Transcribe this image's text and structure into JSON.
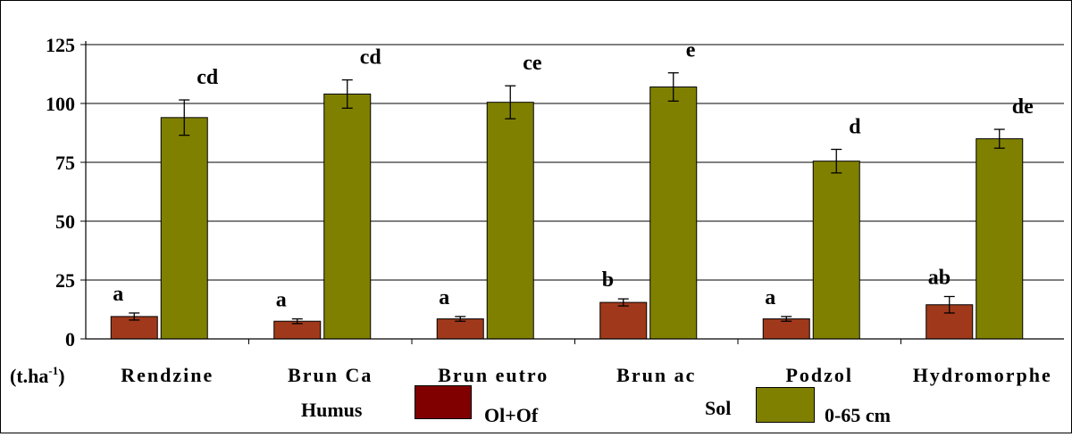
{
  "chart_data": {
    "type": "bar",
    "ylabel": "(t.ha",
    "ylabel_sup": "-1",
    "ylabel_close": ")",
    "ylim": [
      0,
      125
    ],
    "yticks": [
      "0",
      "25",
      "50",
      "75",
      "100",
      "125"
    ],
    "ytick_values": [
      0,
      25,
      50,
      75,
      100,
      125
    ],
    "grid": true,
    "categories": [
      "Rendzine",
      "Brun Ca",
      "Brun eutro",
      "Brun ac",
      "Podzol",
      "Hydromorphe"
    ],
    "series": [
      {
        "name": "Ol+Of",
        "group_label": "Humus",
        "color": "#a0391b",
        "values": [
          9.5,
          7.5,
          8.5,
          15.5,
          8.5,
          14.5
        ],
        "errors": [
          1.5,
          1.0,
          1.0,
          1.5,
          1.0,
          3.5
        ],
        "letters": [
          "a",
          "a",
          "a",
          "b",
          "a",
          "ab"
        ]
      },
      {
        "name": "0-65 cm",
        "group_label": "Sol",
        "color": "#808000",
        "values": [
          94,
          104,
          100.5,
          107,
          75.5,
          85
        ],
        "errors": [
          7.5,
          6,
          7,
          6,
          5,
          4
        ],
        "letters": [
          "cd",
          "cd",
          "ce",
          "e",
          "d",
          "de"
        ]
      }
    ],
    "legend": {
      "humus_label": "Humus",
      "humus_series": "Ol+Of",
      "humus_color": "#800000",
      "sol_label": "Sol",
      "sol_series": "0-65 cm",
      "sol_color": "#808000"
    }
  }
}
